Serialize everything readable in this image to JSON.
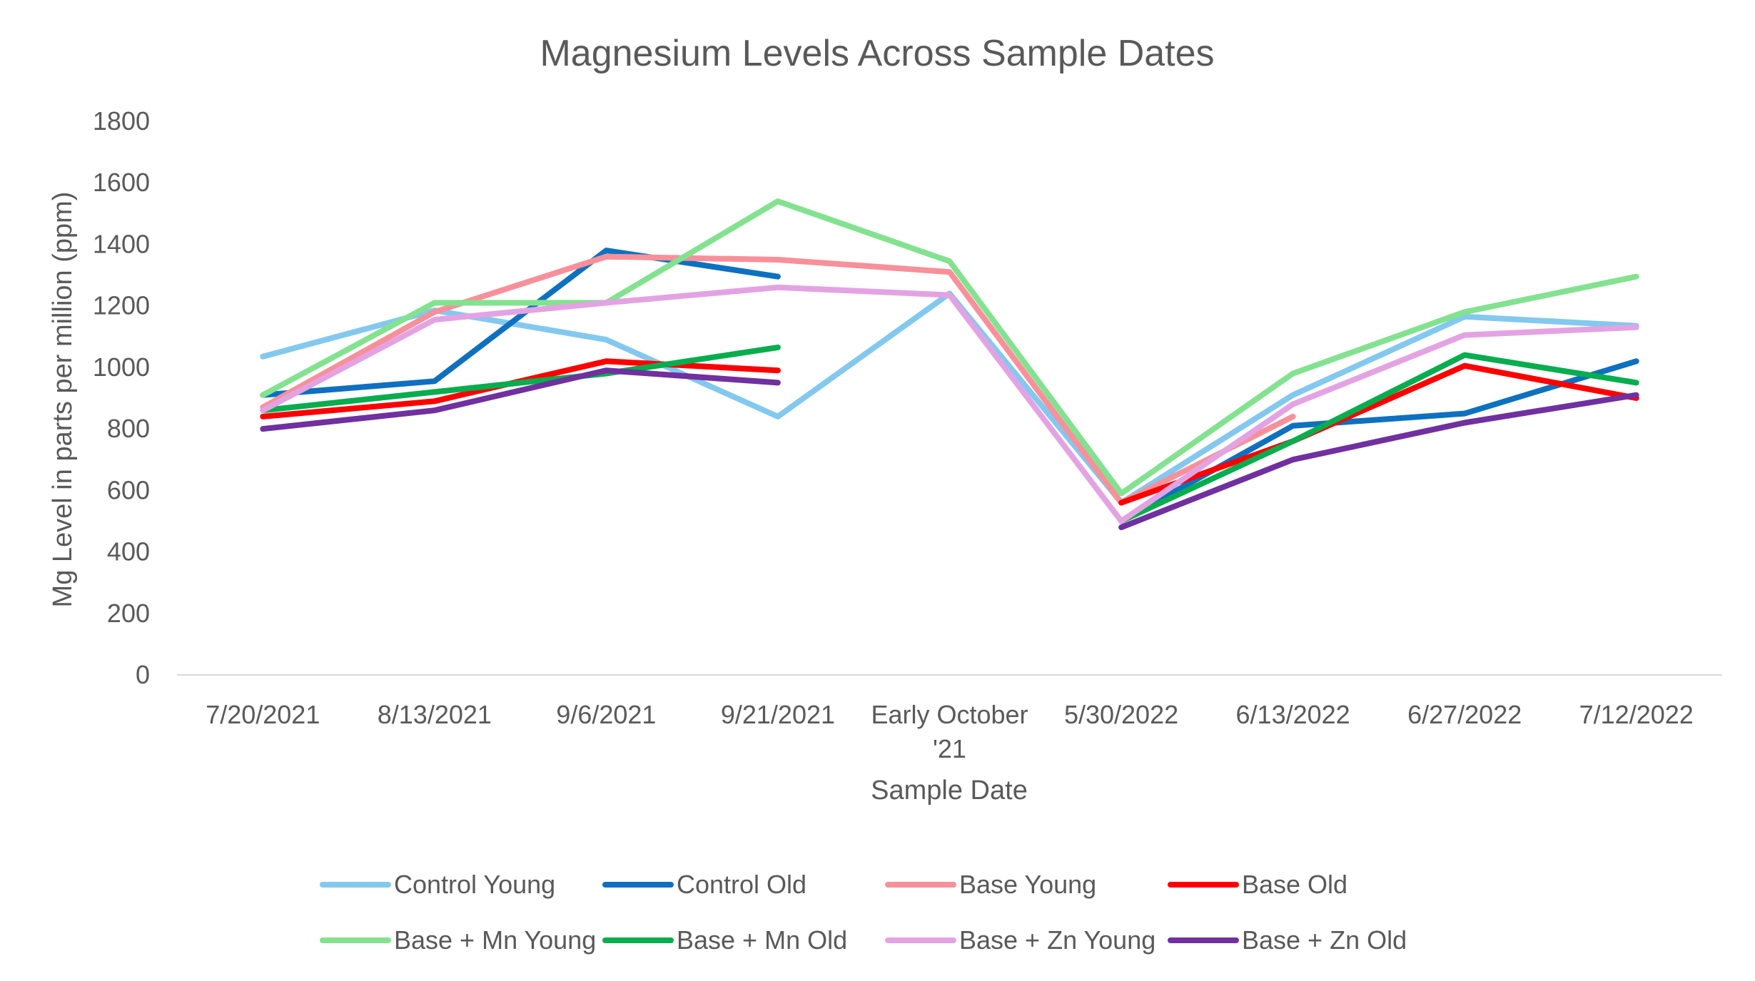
{
  "chart_data": {
    "type": "line",
    "title": "Magnesium Levels Across Sample Dates",
    "xlabel": "Sample Date",
    "ylabel": "Mg Level in parts per million (ppm)",
    "ylim": [
      0,
      1800
    ],
    "yticks": [
      0,
      200,
      400,
      600,
      800,
      1000,
      1200,
      1400,
      1600,
      1800
    ],
    "grid": false,
    "legend_position": "bottom",
    "categories": [
      "7/20/2021",
      "8/13/2021",
      "9/6/2021",
      "9/21/2021",
      "Early October '21",
      "5/30/2022",
      "6/13/2022",
      "6/27/2022",
      "7/12/2022"
    ],
    "series": [
      {
        "name": "Control Young",
        "color": "#83C8EE",
        "values": [
          1035,
          1185,
          1090,
          840,
          1240,
          560,
          910,
          1165,
          1135
        ]
      },
      {
        "name": "Control Old",
        "color": "#0E70C0",
        "values": [
          910,
          955,
          1380,
          1295,
          null,
          500,
          810,
          850,
          1020
        ]
      },
      {
        "name": "Base Young",
        "color": "#F7909A",
        "values": [
          870,
          1180,
          1360,
          1350,
          1310,
          560,
          840,
          null,
          null
        ]
      },
      {
        "name": "Base Old",
        "color": "#FF0000",
        "values": [
          840,
          890,
          1020,
          990,
          null,
          560,
          760,
          1005,
          900
        ]
      },
      {
        "name": "Base + Mn Young",
        "color": "#83E28F",
        "values": [
          910,
          1210,
          1210,
          1540,
          1345,
          590,
          980,
          1180,
          1295
        ]
      },
      {
        "name": "Base + Mn Old",
        "color": "#07AD4E",
        "values": [
          860,
          920,
          980,
          1065,
          null,
          500,
          760,
          1040,
          950
        ]
      },
      {
        "name": "Base + Zn Young",
        "color": "#E3A3E3",
        "values": [
          860,
          1155,
          1210,
          1260,
          1235,
          500,
          880,
          1105,
          1130
        ]
      },
      {
        "name": "Base + Zn Old",
        "color": "#7030A0",
        "values": [
          800,
          860,
          990,
          950,
          null,
          480,
          700,
          820,
          910
        ]
      }
    ]
  }
}
